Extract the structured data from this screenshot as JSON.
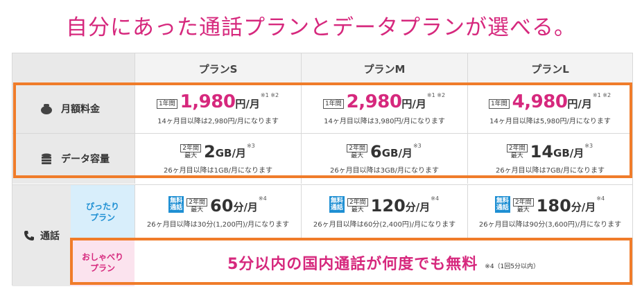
{
  "title": "自分にあった通話プランとデータプランが選べる。",
  "plans": [
    "プランS",
    "プランM",
    "プランL"
  ],
  "rows": {
    "monthly": {
      "label": "月額料金",
      "tag": "1年間",
      "unit": "円/月",
      "note_marks": "※1 ※2",
      "values": [
        "1,980",
        "2,980",
        "4,980"
      ],
      "subs": [
        "14ヶ月目以降は2,980円/月になります",
        "14ヶ月目以降は3,980円/月になります",
        "14ヶ月目以降は5,980円/月になります"
      ]
    },
    "data": {
      "label": "データ容量",
      "tag_top": "2年間",
      "tag_bottom": "最大",
      "unit": "GB/月",
      "note_mark": "※3",
      "values": [
        "2",
        "6",
        "14"
      ],
      "subs": [
        "26ヶ月目以降は1GB/月になります",
        "26ヶ月目以降は3GB/月になります",
        "26ヶ月目以降は7GB/月になります"
      ]
    },
    "call": {
      "label": "通話",
      "pittari_label_1": "ぴったり",
      "pittari_label_2": "プラン",
      "free_1": "無料",
      "free_2": "通話",
      "tag_top": "2年間",
      "tag_bottom": "最大",
      "unit": "分/月",
      "note_mark": "※4",
      "values": [
        "60",
        "120",
        "180"
      ],
      "subs": [
        "26ヶ月目以降は30分(1,200円)/月になります",
        "26ヶ月目以降は60分(2,400円)/月になります",
        "26ヶ月目以降は90分(3,600円)/月になります"
      ],
      "oshaberi_label_1": "おしゃべり",
      "oshaberi_label_2": "プラン",
      "oshaberi_main": "5分以内の国内通話が何度でも無料",
      "oshaberi_note": "※4（1回5分以内）"
    }
  },
  "colors": {
    "accent": "#d6287d",
    "highlight": "#f07c2a",
    "blue": "#1e8fd3"
  },
  "icons": {
    "monthly": "coin-purse-icon",
    "data": "database-icon",
    "call": "phone-icon"
  }
}
